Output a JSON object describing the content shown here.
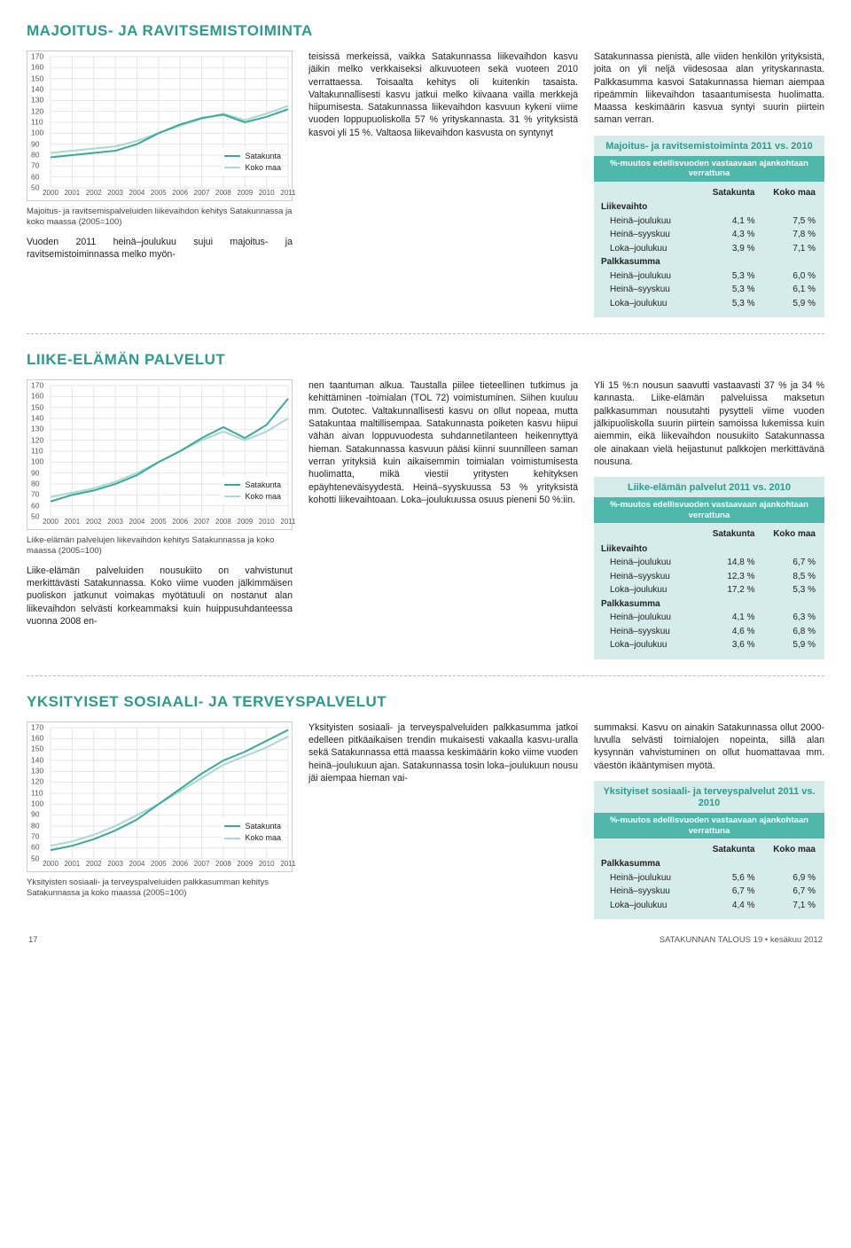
{
  "colors": {
    "title": "#2b9b8e",
    "satakunta": "#3aa99a",
    "kokomaa": "#a8d8d1",
    "grid": "#e6e6e6",
    "axis": "#cccccc",
    "table_bg": "#d6ecea",
    "table_header_bg": "#4fb8ab"
  },
  "chart_common": {
    "y_min": 50,
    "y_max": 170,
    "y_step": 10,
    "x_labels": [
      "2000",
      "2001",
      "2002",
      "2003",
      "2004",
      "2005",
      "2006",
      "2007",
      "2008",
      "2009",
      "2010",
      "2011"
    ],
    "legend": {
      "satakunta": "Satakunta",
      "kokomaa": "Koko maa"
    }
  },
  "sections": [
    {
      "id": "majoitus",
      "title": "MAJOITUS- JA RAVITSEMISTOIMINTA",
      "chart": {
        "caption": "Majoitus- ja ravitsemispalveluiden liikevaihdon kehitys Satakunnassa ja koko maassa (2005=100)",
        "series": {
          "satakunta": [
            78,
            80,
            82,
            84,
            90,
            100,
            108,
            114,
            117,
            110,
            115,
            122
          ],
          "kokomaa": [
            82,
            84,
            86,
            88,
            93,
            100,
            107,
            113,
            118,
            112,
            118,
            125
          ]
        }
      },
      "text1": "Vuoden 2011 heinä–joulukuu sujui majoitus- ja ravitsemistoiminnassa melko myön-",
      "text2": "teisissä merkeissä, vaikka Satakunnassa liikevaihdon kasvu jäikin melko verkkaiseksi alkuvuoteen sekä vuoteen 2010 verrattaessa. Toisaalta kehitys oli kuitenkin tasaista. Valtakunnallisesti kasvu jatkui melko kiivaana vailla merkkejä hiipumisesta. Satakunnassa liikevaihdon kasvuun kykeni viime vuoden loppupuoliskolla 57 % yrityskannasta. 31 % yrityksistä kasvoi yli 15 %. Valtaosa liikevaihdon kasvusta on syntynyt",
      "text3": "Satakunnassa pienistä, alle viiden henkilön yrityksistä, joita on yli neljä viidesosaa alan yrityskannasta. Palkkasumma kasvoi Satakunnassa hieman aiempaa ripeämmin liikevaihdon tasaantumisesta huolimatta. Maassa keskimäärin kasvua syntyi suurin piirtein saman verran.",
      "table": {
        "title": "Majoitus- ja ravitsemistoiminta 2011 vs. 2010",
        "sub": "%-muutos edellisvuoden vastaavaan ajankohtaan verrattuna",
        "cols": [
          "",
          "Satakunta",
          "Koko maa"
        ],
        "groups": [
          {
            "name": "Liikevaihto",
            "rows": [
              [
                "Heinä–joulukuu",
                "4,1 %",
                "7,5 %"
              ],
              [
                "Heinä–syyskuu",
                "4,3 %",
                "7,8 %"
              ],
              [
                "Loka–joulukuu",
                "3,9 %",
                "7,1 %"
              ]
            ]
          },
          {
            "name": "Palkkasumma",
            "rows": [
              [
                "Heinä–joulukuu",
                "5,3 %",
                "6,0 %"
              ],
              [
                "Heinä–syyskuu",
                "5,3 %",
                "6,1 %"
              ],
              [
                "Loka–joulukuu",
                "5,3 %",
                "5,9 %"
              ]
            ]
          }
        ]
      }
    },
    {
      "id": "liike",
      "title": "LIIKE-ELÄMÄN PALVELUT",
      "chart": {
        "caption": "Liike-elämän palvelujen liikevaihdon kehitys Satakunnassa ja koko maassa (2005=100)",
        "series": {
          "satakunta": [
            64,
            70,
            74,
            80,
            88,
            100,
            110,
            122,
            132,
            122,
            134,
            158
          ],
          "kokomaa": [
            68,
            72,
            76,
            82,
            90,
            100,
            110,
            120,
            128,
            120,
            128,
            140
          ]
        }
      },
      "text1": "Liike-elämän palveluiden nousukiito on vahvistunut merkittävästi Satakunnassa. Koko viime vuoden jälkimmäisen puoliskon jatkunut voimakas myötätuuli on nostanut alan liikevaihdon selvästi korkeammaksi kuin huippusuhdanteessa vuonna 2008 en-",
      "text2": "nen taantuman alkua. Taustalla piilee tieteellinen tutkimus ja kehittäminen -toimialan (TOL 72) voimistuminen. Siihen kuuluu mm. Outotec. Valtakunnallisesti kasvu on ollut nopeaa, mutta Satakuntaa maltillisempaa. Satakunnasta poiketen kasvu hiipui vähän aivan loppuvuodesta suhdannetilanteen heikennyttyä hieman. Satakunnassa kasvuun pääsi kiinni suunnilleen saman verran yrityksiä kuin aikaisemmin toimialan voimistumisesta huolimatta, mikä viestii yritysten kehityksen epäyhteneväisyydestä. Heinä–syyskuussa 53 % yrityksistä kohotti liikevaihtoaan. Loka–joulukuussa osuus pieneni 50 %:iin.",
      "text3": "Yli 15 %:n nousun saavutti vastaavasti 37 % ja 34 % kannasta. Liike-elämän palveluissa maksetun palkkasumman nousutahti pysytteli viime vuoden jälkipuoliskolla suurin piirtein samoissa lukemissa kuin aiemmin, eikä liikevaihdon nousukiito Satakunnassa ole ainakaan vielä heijastunut palkkojen merkittävänä nousuna.",
      "table": {
        "title": "Liike-elämän palvelut 2011 vs. 2010",
        "sub": "%-muutos edellisvuoden vastaavaan ajankohtaan verrattuna",
        "cols": [
          "",
          "Satakunta",
          "Koko maa"
        ],
        "groups": [
          {
            "name": "Liikevaihto",
            "rows": [
              [
                "Heinä–joulukuu",
                "14,8 %",
                "6,7 %"
              ],
              [
                "Heinä–syyskuu",
                "12,3 %",
                "8,5 %"
              ],
              [
                "Loka–joulukuu",
                "17,2 %",
                "5,3 %"
              ]
            ]
          },
          {
            "name": "Palkkasumma",
            "rows": [
              [
                "Heinä–joulukuu",
                "4,1 %",
                "6,3 %"
              ],
              [
                "Heinä–syyskuu",
                "4,6 %",
                "6,8 %"
              ],
              [
                "Loka–joulukuu",
                "3,6 %",
                "5,9 %"
              ]
            ]
          }
        ]
      }
    },
    {
      "id": "yksityiset",
      "title": "YKSITYISET SOSIAALI- JA TERVEYSPALVELUT",
      "chart": {
        "caption": "Yksityisten sosiaali- ja terveyspalveluiden palkkasumman kehitys Satakunnassa ja koko maassa (2005=100)",
        "series": {
          "satakunta": [
            58,
            62,
            68,
            76,
            86,
            100,
            114,
            128,
            140,
            148,
            158,
            168
          ],
          "kokomaa": [
            62,
            66,
            72,
            80,
            90,
            100,
            112,
            124,
            136,
            144,
            152,
            162
          ]
        }
      },
      "text1": "",
      "text2": "Yksityisten sosiaali- ja terveyspalveluiden palkkasumma jatkoi edelleen pitkäaikaisen trendin mukaisesti vakaalla kasvu-uralla sekä Satakunnassa että maassa keskimäärin koko viime vuoden heinä–joulukuun ajan. Satakunnassa tosin loka–joulukuun nousu jäi aiempaa hieman vai-",
      "text3": "summaksi. Kasvu on ainakin Satakunnassa ollut 2000-luvulla selvästi toimialojen nopeinta, sillä alan kysynnän vahvistuminen on ollut huomattavaa mm. väestön ikääntymisen myötä.",
      "table": {
        "title": "Yksityiset sosiaali- ja terveyspalvelut 2011 vs. 2010",
        "sub": "%-muutos edellisvuoden vastaavaan ajankohtaan verrattuna",
        "cols": [
          "",
          "Satakunta",
          "Koko maa"
        ],
        "groups": [
          {
            "name": "Palkkasumma",
            "rows": [
              [
                "Heinä–joulukuu",
                "5,6 %",
                "6,9 %"
              ],
              [
                "Heinä–syyskuu",
                "6,7 %",
                "6,7 %"
              ],
              [
                "Loka–joulukuu",
                "4,4 %",
                "7,1 %"
              ]
            ]
          }
        ]
      }
    }
  ],
  "footer": {
    "page": "17",
    "right": "SATAKUNNAN TALOUS 19 • kesäkuu 2012"
  }
}
